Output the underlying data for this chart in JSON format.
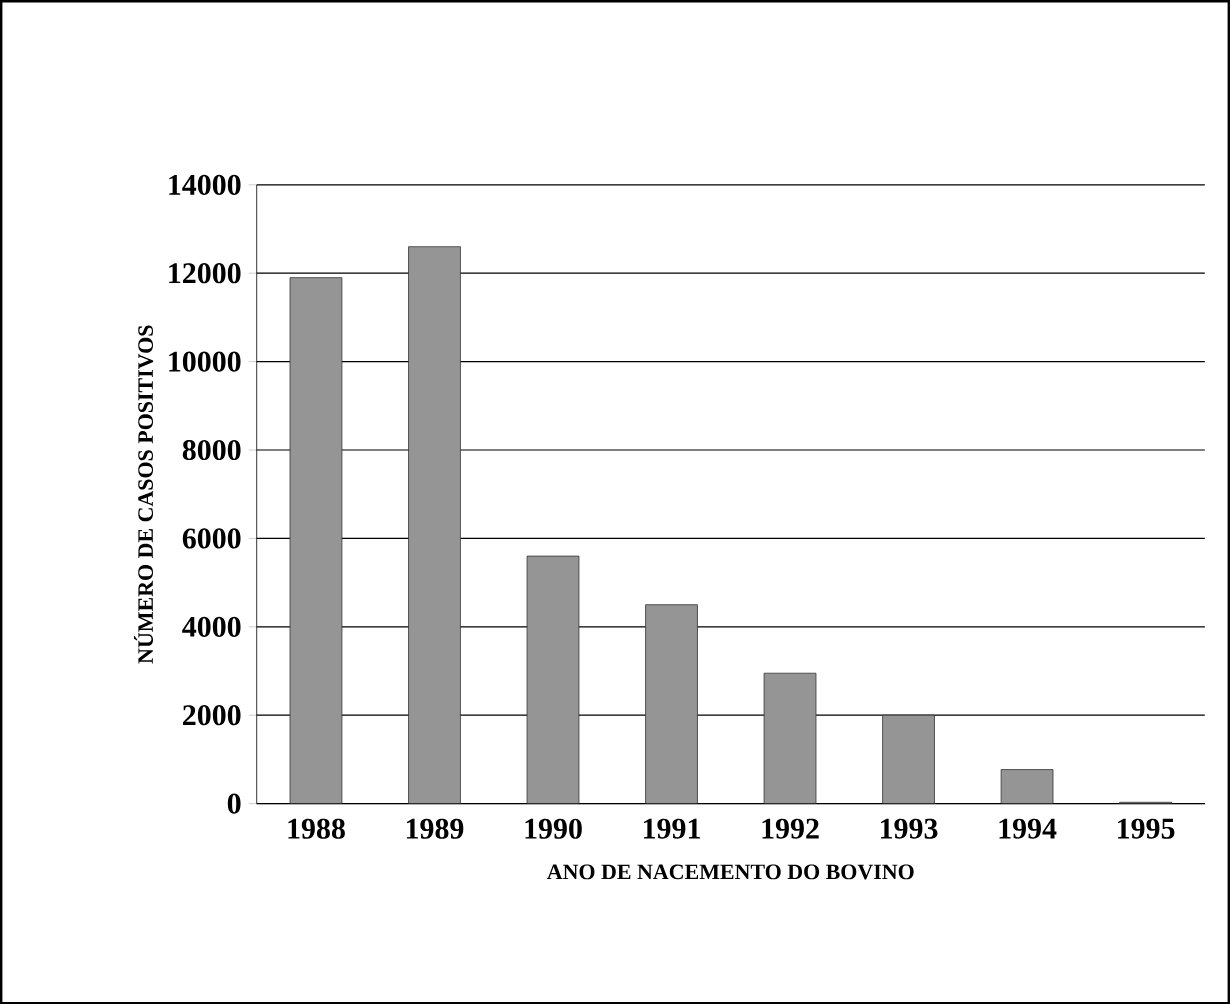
{
  "chart_data": {
    "type": "bar",
    "xlabel": "ANO DE NACEMENTO DO BOVINO",
    "ylabel": "NÚMERO DE CASOS POSITIVOS",
    "categories": [
      "1988",
      "1989",
      "1990",
      "1991",
      "1992",
      "1993",
      "1994",
      "1995"
    ],
    "values": [
      11900,
      12600,
      5600,
      4500,
      2950,
      2000,
      770,
      30
    ],
    "color": "#959595",
    "ylim": [
      0,
      14000
    ],
    "yticks": [
      0,
      2000,
      4000,
      6000,
      8000,
      10000,
      12000,
      14000
    ],
    "grid": "y"
  }
}
